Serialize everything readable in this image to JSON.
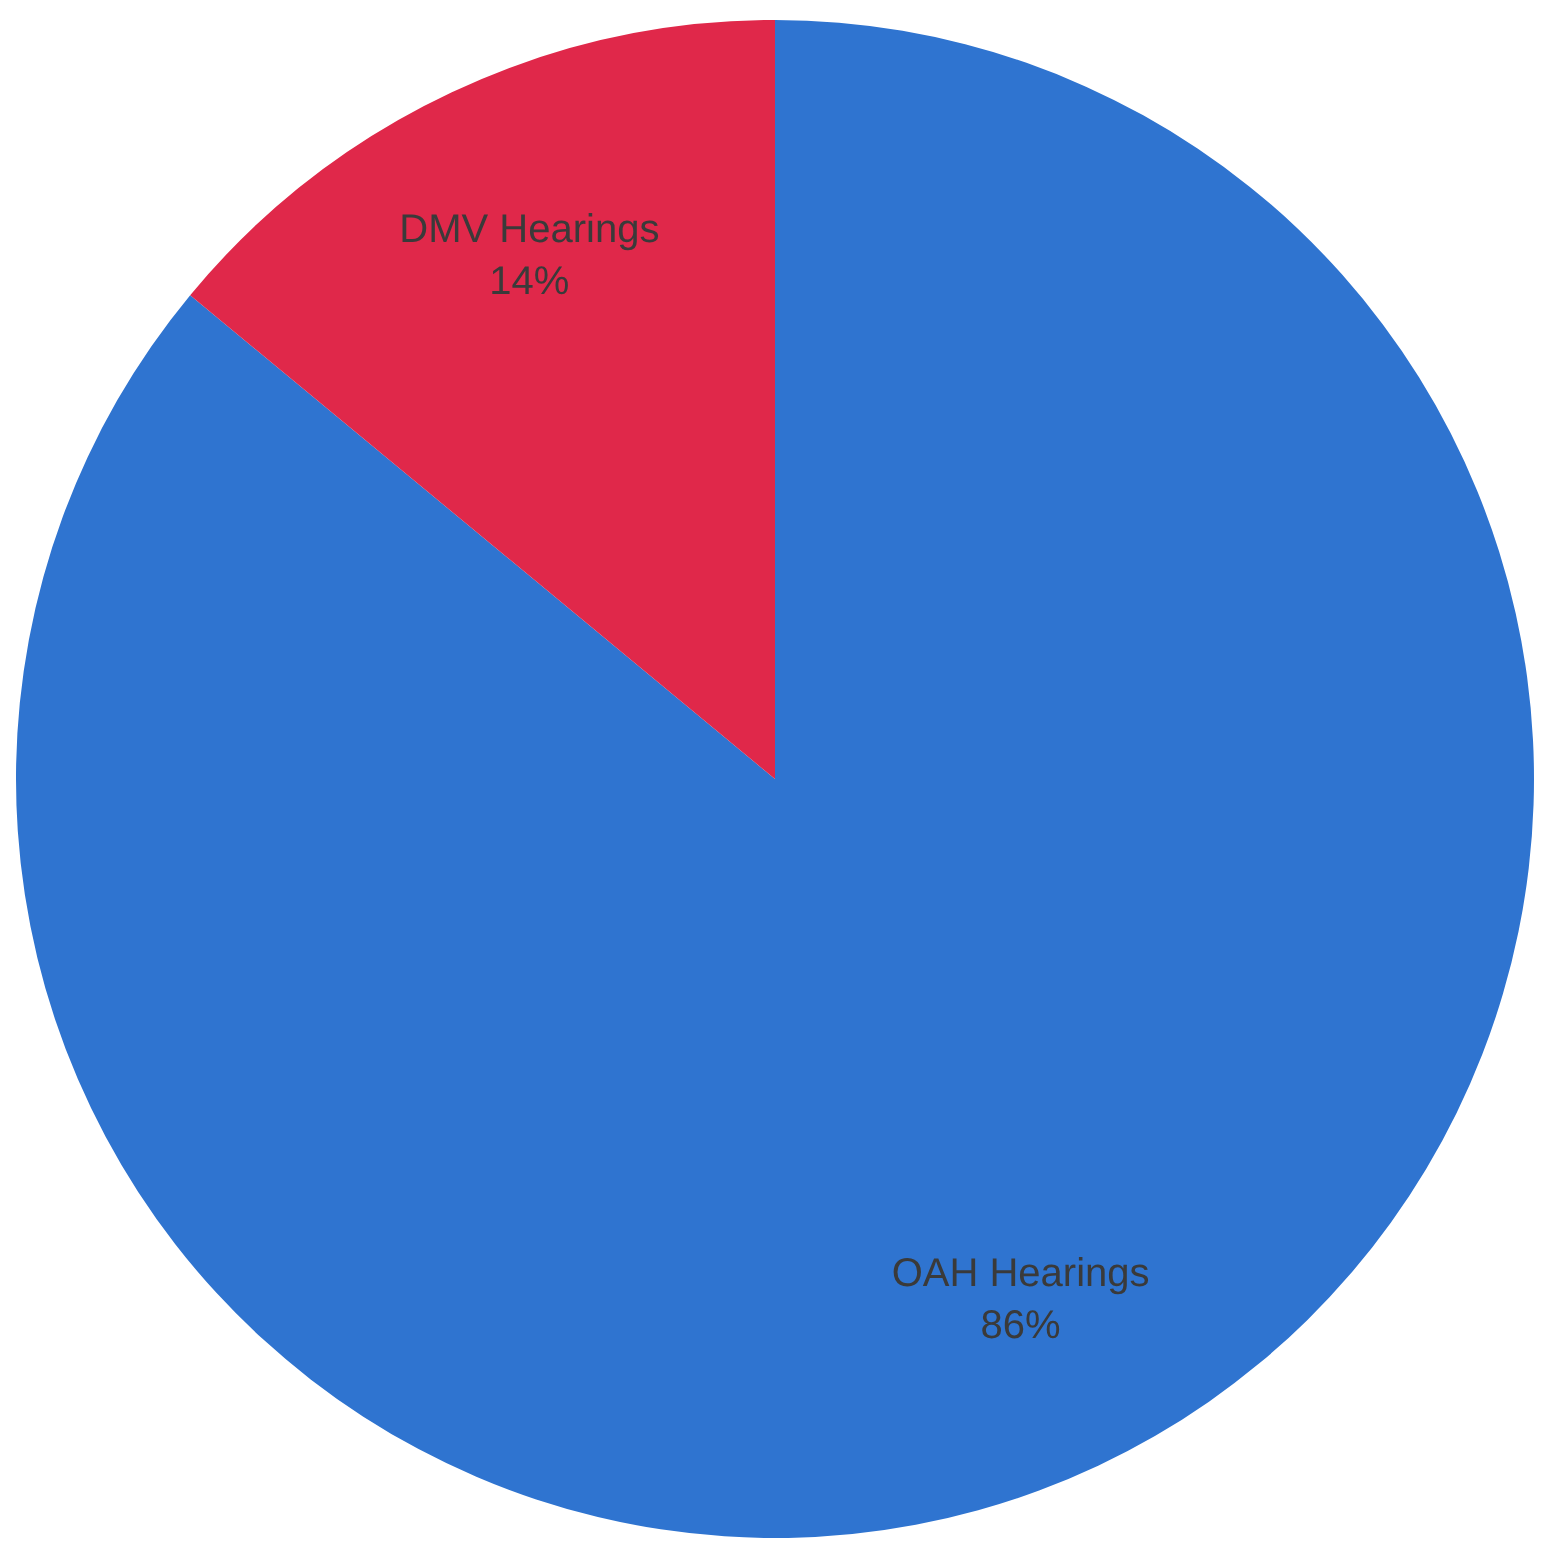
{
  "chart_data": {
    "type": "pie",
    "categories": [
      "OAH Hearings",
      "DMV Hearings"
    ],
    "values": [
      86,
      14
    ],
    "value_labels": [
      "86%",
      "14%"
    ],
    "colors": [
      "#2f74d0",
      "#e0284a"
    ],
    "legend": false
  }
}
